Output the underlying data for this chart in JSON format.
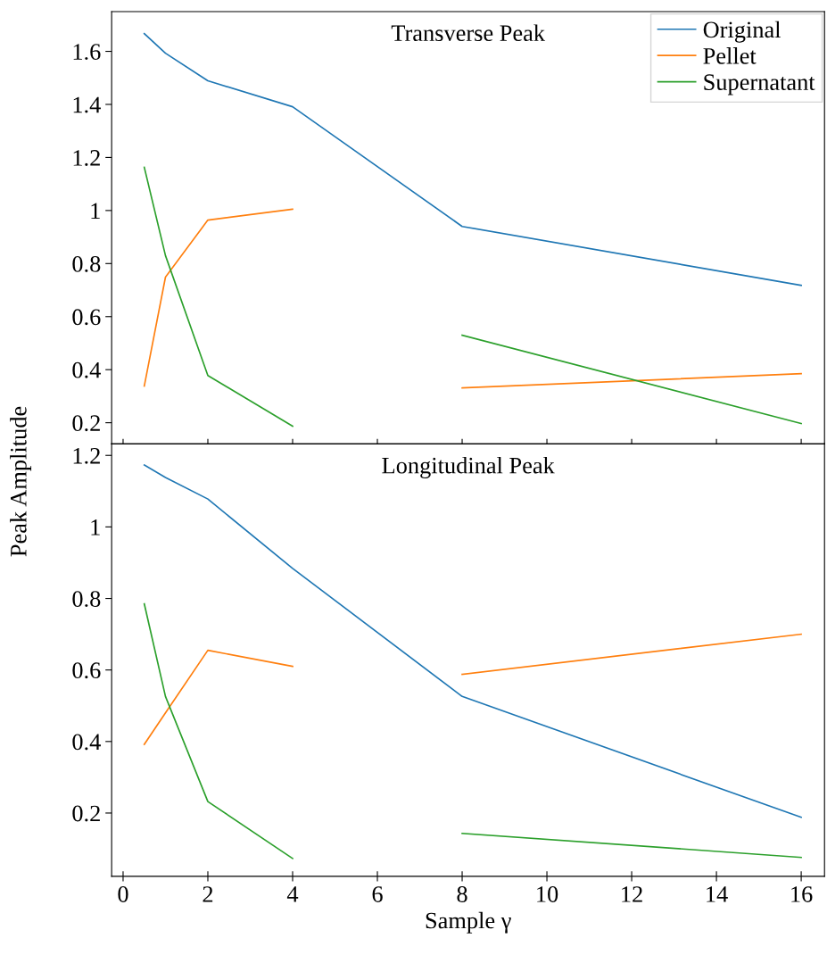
{
  "chart_data": [
    {
      "type": "line",
      "title": "Transverse Peak",
      "ylabel": "Peak Amplitude",
      "xlim": [
        -0.27,
        16.55
      ],
      "xticks": [
        0,
        2,
        4,
        6,
        8,
        10,
        12,
        14,
        16
      ],
      "ylim": [
        0.12,
        1.75
      ],
      "yticks": [
        0.2,
        0.4,
        0.6,
        0.8,
        1,
        1.2,
        1.4,
        1.6
      ],
      "tick_labels": "y",
      "legend": "top right",
      "grid": false,
      "marker": "none",
      "line_style": "solid",
      "series": [
        {
          "name": "Original",
          "color": "#1f77b4",
          "x": [
            0.5,
            1,
            2,
            4,
            8,
            16
          ],
          "values": [
            1.667,
            1.593,
            1.489,
            1.391,
            0.94,
            0.718
          ]
        },
        {
          "name": "Pellet",
          "color": "#ff7f0e",
          "x": [
            0.5,
            1,
            2,
            4,
            6,
            8,
            16
          ],
          "values": [
            0.338,
            0.749,
            0.964,
            1.005,
            null,
            0.331,
            0.385
          ]
        },
        {
          "name": "Supernatant",
          "color": "#2ca02c",
          "x": [
            0.5,
            1,
            2,
            4,
            6,
            8,
            16
          ],
          "values": [
            1.163,
            0.83,
            0.378,
            0.187,
            null,
            0.53,
            0.197
          ]
        }
      ]
    },
    {
      "type": "line",
      "title": "Longitudinal Peak",
      "xlabel": "Sample γ",
      "xlim": [
        -0.27,
        16.55
      ],
      "xticks": [
        0,
        2,
        4,
        6,
        8,
        10,
        12,
        14,
        16
      ],
      "ylim": [
        0.023,
        1.232
      ],
      "yticks": [
        0.2,
        0.4,
        0.6,
        0.8,
        1,
        1.2
      ],
      "grid": false,
      "marker": "none",
      "line_style": "solid",
      "series": [
        {
          "color": "#1f77b4",
          "x": [
            0.5,
            1,
            2,
            4,
            8,
            16
          ],
          "values": [
            1.173,
            1.138,
            1.078,
            0.884,
            0.526,
            0.188
          ]
        },
        {
          "color": "#ff7f0e",
          "x": [
            0.5,
            1,
            2,
            4,
            6,
            8,
            16
          ],
          "values": [
            0.392,
            0.48,
            0.655,
            0.61,
            null,
            0.588,
            0.7
          ]
        },
        {
          "color": "#2ca02c",
          "x": [
            0.5,
            1,
            2,
            4,
            6,
            8,
            16
          ],
          "values": [
            0.785,
            0.526,
            0.232,
            0.073,
            null,
            0.143,
            0.076
          ]
        }
      ]
    }
  ]
}
